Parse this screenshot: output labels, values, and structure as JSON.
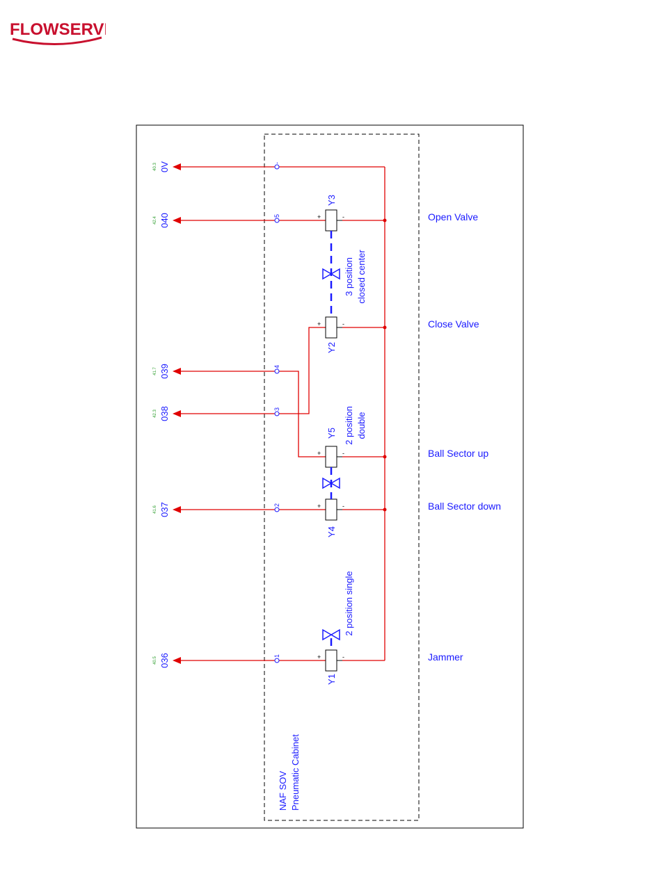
{
  "header": {
    "logo_text": "FLOWSERVE"
  },
  "colors": {
    "wire": "#e00000",
    "text": "#1a1aff",
    "ref": "#2e9e2e",
    "frame": "#000000",
    "brand": "#c8102e"
  },
  "cabinet_label": [
    "NAF SOV",
    "Pneumatic Cabinet"
  ],
  "ov_terminal": {
    "signal": "0V",
    "ref": "40.3",
    "pin": "-"
  },
  "coils": [
    {
      "id": "Y3",
      "signal": "040",
      "ref": "42.4",
      "pin": "5",
      "function": "Open Valve"
    },
    {
      "id": "Y2",
      "function": "Close Valve"
    },
    {
      "id": "Y5",
      "function": "Ball Sector up"
    },
    {
      "id": "Y4",
      "signal": "037",
      "ref": "41.6",
      "pin": "2",
      "function": "Ball Sector down"
    },
    {
      "id": "Y1",
      "signal": "036",
      "ref": "40.5",
      "pin": "1",
      "function": "Jammer"
    }
  ],
  "signals_y5_y2": [
    {
      "signal": "039",
      "ref": "41.7",
      "pin": "4"
    },
    {
      "signal": "038",
      "ref": "42.3",
      "pin": "3"
    }
  ],
  "valve_types": {
    "y3_y2": [
      "3 position",
      "closed center"
    ],
    "y5_y4": [
      "2 position",
      "double"
    ],
    "y1": "2 position single"
  },
  "polarity": {
    "plus": "+",
    "minus": "-"
  }
}
